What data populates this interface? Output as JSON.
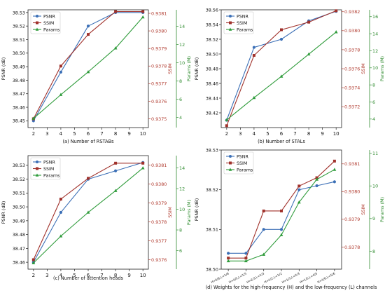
{
  "figure": {
    "colors": {
      "psnr": "#3b6fb6",
      "ssim": "#a0312b",
      "params": "#2e9b3a",
      "ssim_axis": "#b03a2e",
      "params_axis": "#2e8b2e"
    }
  },
  "chart_data": [
    {
      "type": "line",
      "caption": "(a) Number of RSTABs",
      "x": [
        2,
        4,
        6,
        8,
        10
      ],
      "xticks": [
        2,
        3,
        4,
        5,
        6,
        7,
        8,
        9,
        10
      ],
      "xlim": [
        1.6,
        10.4
      ],
      "ylabel_left": "PSNR (dB)",
      "ylabel_right1": "SSIM",
      "ylabel_right2": "Params (M)",
      "ylim_left": [
        38.445,
        38.532
      ],
      "yticks_left": [
        38.45,
        38.46,
        38.47,
        38.48,
        38.49,
        38.5,
        38.51,
        38.52,
        38.53
      ],
      "ylim_ssim": [
        0.93745,
        0.93812
      ],
      "yticks_ssim": [
        0.9375,
        0.9376,
        0.9377,
        0.9378,
        0.9379,
        0.938,
        0.9381
      ],
      "ylim_params": [
        2.9,
        15.8
      ],
      "yticks_params": [
        4,
        6,
        8,
        10,
        12,
        14
      ],
      "legend_position": "top-left",
      "series": [
        {
          "name": "PSNR",
          "axis": "left",
          "marker": "circle",
          "values": [
            38.45,
            38.486,
            38.52,
            38.53,
            38.53
          ]
        },
        {
          "name": "SSIM",
          "axis": "ssim",
          "marker": "square",
          "values": [
            0.9375,
            0.9378,
            0.93798,
            0.93811,
            0.93811
          ]
        },
        {
          "name": "Params",
          "axis": "params",
          "marker": "triangle",
          "values": [
            3.9,
            6.5,
            9.0,
            11.6,
            15.0
          ]
        }
      ]
    },
    {
      "type": "line",
      "caption": "(b) Number of STALs",
      "x": [
        2,
        4,
        6,
        8,
        10
      ],
      "xticks": [
        2,
        3,
        4,
        5,
        6,
        7,
        8,
        9,
        10
      ],
      "xlim": [
        1.6,
        10.4
      ],
      "ylabel_left": "PSNR (dB)",
      "ylabel_right1": "SSIM",
      "ylabel_right2": "Params (M)",
      "ylim_left": [
        38.4,
        38.56
      ],
      "yticks_left": [
        38.42,
        38.44,
        38.46,
        38.48,
        38.5,
        38.52,
        38.54,
        38.56
      ],
      "ylim_ssim": [
        0.93698,
        0.93822
      ],
      "yticks_ssim": [
        0.9372,
        0.9374,
        0.9376,
        0.9378,
        0.938,
        0.9382
      ],
      "ylim_params": [
        3.0,
        16.8
      ],
      "yticks_params": [
        4,
        6,
        8,
        10,
        12,
        14,
        16
      ],
      "legend_position": "top-left",
      "series": [
        {
          "name": "PSNR",
          "axis": "left",
          "marker": "circle",
          "values": [
            38.41,
            38.509,
            38.52,
            38.545,
            38.558
          ]
        },
        {
          "name": "SSIM",
          "axis": "ssim",
          "marker": "square",
          "values": [
            0.937,
            0.93774,
            0.93801,
            0.93809,
            0.93821
          ]
        },
        {
          "name": "Params",
          "axis": "params",
          "marker": "triangle",
          "values": [
            3.9,
            6.5,
            9.0,
            11.6,
            14.2
          ]
        }
      ]
    },
    {
      "type": "line",
      "caption": "(c) Number of attention heads",
      "x": [
        2,
        4,
        6,
        8,
        10
      ],
      "xticks": [
        2,
        3,
        4,
        5,
        6,
        7,
        8,
        9,
        10
      ],
      "xlim": [
        1.6,
        10.4
      ],
      "ylabel_left": "PSNR (dB)",
      "ylabel_right1": "SSIM",
      "ylabel_right2": "Params (M)",
      "ylim_left": [
        38.455,
        38.537
      ],
      "yticks_left": [
        38.46,
        38.47,
        38.48,
        38.49,
        38.5,
        38.51,
        38.52,
        38.53
      ],
      "ylim_ssim": [
        0.93755,
        0.93815
      ],
      "yticks_ssim": [
        0.9376,
        0.9377,
        0.9378,
        0.9379,
        0.938,
        0.9381
      ],
      "ylim_params": [
        4.2,
        15.2
      ],
      "yticks_params": [
        6,
        8,
        10,
        12,
        14
      ],
      "legend_position": "top-left",
      "series": [
        {
          "name": "PSNR",
          "axis": "left",
          "marker": "circle",
          "values": [
            38.46,
            38.496,
            38.52,
            38.526,
            38.532
          ]
        },
        {
          "name": "SSIM",
          "axis": "ssim",
          "marker": "square",
          "values": [
            0.9376,
            0.93792,
            0.93803,
            0.93811,
            0.93811
          ]
        },
        {
          "name": "Params",
          "axis": "params",
          "marker": "triangle",
          "values": [
            4.8,
            7.4,
            9.7,
            11.8,
            14.0
          ]
        }
      ]
    },
    {
      "type": "line",
      "caption": "(d) Weights for the high-frequency (H) and the low-frequency (L) channels",
      "x": [
        1,
        2,
        3,
        4,
        5,
        6,
        7
      ],
      "xticks": [
        1,
        2,
        3,
        4,
        5,
        6,
        7
      ],
      "xtick_labels": [
        "H=5/6,L=1/6",
        "H=4/5,L=1/5",
        "H=2/3,L=1/3",
        "H=1/2,L=1/2",
        "H=1/3,L=2/3",
        "H=1/5,L=4/5",
        "H=1/6,L=5/6"
      ],
      "xlim": [
        0.6,
        7.4
      ],
      "ylabel_left": "PSNR (dB)",
      "ylabel_right1": "SSIM",
      "ylabel_right2": "Params (M)",
      "ylim_left": [
        38.5,
        38.53
      ],
      "yticks_left": [
        38.5,
        38.51,
        38.52,
        38.53
      ],
      "ylim_ssim": [
        0.93772,
        0.93815
      ],
      "yticks_ssim": [
        0.9378,
        0.9379,
        0.938,
        0.9381
      ],
      "ylim_params": [
        7.45,
        11.1
      ],
      "yticks_params": [
        8,
        9,
        10,
        11
      ],
      "legend_position": "top-left",
      "series": [
        {
          "name": "PSNR",
          "axis": "left",
          "marker": "circle",
          "values": [
            38.504,
            38.504,
            38.51,
            38.51,
            38.52,
            38.521,
            38.522
          ]
        },
        {
          "name": "SSIM",
          "axis": "ssim",
          "marker": "square",
          "values": [
            0.93776,
            0.93776,
            0.93793,
            0.93793,
            0.93802,
            0.93805,
            0.93811
          ]
        },
        {
          "name": "Params",
          "axis": "params",
          "marker": "triangle",
          "values": [
            7.7,
            7.7,
            7.9,
            8.5,
            9.5,
            10.2,
            10.5
          ]
        }
      ]
    }
  ]
}
